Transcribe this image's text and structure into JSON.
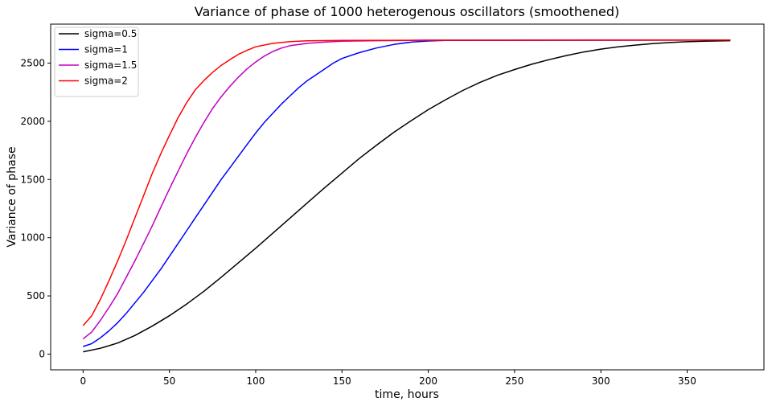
{
  "chart_data": {
    "type": "line",
    "title": "Variance of phase of 1000 heterogenous oscillators (smoothened)",
    "xlabel": "time, hours",
    "ylabel": "Variance of phase",
    "xlim": [
      -18.8,
      394.5
    ],
    "ylim": [
      -135,
      2835
    ],
    "x_ticks": [
      0,
      50,
      100,
      150,
      200,
      250,
      300,
      350
    ],
    "y_ticks": [
      0,
      500,
      1000,
      1500,
      2000,
      2500
    ],
    "grid": false,
    "legend_position": "top-left",
    "series": [
      {
        "name": "sigma=0.5",
        "color": "#000000",
        "points": [
          [
            0,
            20
          ],
          [
            10,
            50
          ],
          [
            20,
            95
          ],
          [
            30,
            160
          ],
          [
            40,
            240
          ],
          [
            50,
            330
          ],
          [
            60,
            430
          ],
          [
            70,
            540
          ],
          [
            80,
            660
          ],
          [
            90,
            785
          ],
          [
            100,
            910
          ],
          [
            110,
            1040
          ],
          [
            120,
            1170
          ],
          [
            130,
            1300
          ],
          [
            140,
            1430
          ],
          [
            150,
            1555
          ],
          [
            160,
            1680
          ],
          [
            170,
            1795
          ],
          [
            180,
            1905
          ],
          [
            190,
            2005
          ],
          [
            200,
            2100
          ],
          [
            210,
            2185
          ],
          [
            220,
            2265
          ],
          [
            230,
            2335
          ],
          [
            240,
            2395
          ],
          [
            250,
            2445
          ],
          [
            260,
            2490
          ],
          [
            270,
            2530
          ],
          [
            280,
            2565
          ],
          [
            290,
            2595
          ],
          [
            300,
            2620
          ],
          [
            310,
            2640
          ],
          [
            320,
            2655
          ],
          [
            330,
            2668
          ],
          [
            340,
            2677
          ],
          [
            350,
            2684
          ],
          [
            360,
            2688
          ],
          [
            375,
            2693
          ]
        ]
      },
      {
        "name": "sigma=1",
        "color": "#0000ff",
        "points": [
          [
            0,
            65
          ],
          [
            5,
            90
          ],
          [
            10,
            140
          ],
          [
            15,
            200
          ],
          [
            20,
            270
          ],
          [
            25,
            350
          ],
          [
            30,
            440
          ],
          [
            35,
            530
          ],
          [
            40,
            630
          ],
          [
            45,
            730
          ],
          [
            50,
            840
          ],
          [
            55,
            950
          ],
          [
            60,
            1060
          ],
          [
            65,
            1170
          ],
          [
            70,
            1280
          ],
          [
            75,
            1390
          ],
          [
            80,
            1500
          ],
          [
            85,
            1600
          ],
          [
            90,
            1700
          ],
          [
            95,
            1800
          ],
          [
            100,
            1900
          ],
          [
            105,
            1990
          ],
          [
            110,
            2070
          ],
          [
            115,
            2150
          ],
          [
            120,
            2220
          ],
          [
            125,
            2290
          ],
          [
            130,
            2350
          ],
          [
            135,
            2400
          ],
          [
            140,
            2450
          ],
          [
            145,
            2500
          ],
          [
            150,
            2540
          ],
          [
            160,
            2590
          ],
          [
            170,
            2630
          ],
          [
            180,
            2660
          ],
          [
            190,
            2680
          ],
          [
            200,
            2690
          ],
          [
            210,
            2695
          ],
          [
            375,
            2698
          ]
        ]
      },
      {
        "name": "sigma=1.5",
        "color": "#c000c0",
        "points": [
          [
            0,
            130
          ],
          [
            5,
            190
          ],
          [
            10,
            290
          ],
          [
            15,
            400
          ],
          [
            20,
            520
          ],
          [
            25,
            660
          ],
          [
            30,
            800
          ],
          [
            35,
            950
          ],
          [
            40,
            1100
          ],
          [
            45,
            1260
          ],
          [
            50,
            1420
          ],
          [
            55,
            1570
          ],
          [
            60,
            1720
          ],
          [
            65,
            1860
          ],
          [
            70,
            1990
          ],
          [
            75,
            2110
          ],
          [
            80,
            2210
          ],
          [
            85,
            2300
          ],
          [
            90,
            2380
          ],
          [
            95,
            2450
          ],
          [
            100,
            2510
          ],
          [
            105,
            2560
          ],
          [
            110,
            2600
          ],
          [
            115,
            2630
          ],
          [
            120,
            2650
          ],
          [
            130,
            2670
          ],
          [
            140,
            2680
          ],
          [
            150,
            2688
          ],
          [
            170,
            2693
          ],
          [
            200,
            2697
          ],
          [
            375,
            2698
          ]
        ]
      },
      {
        "name": "sigma=2",
        "color": "#ff0000",
        "points": [
          [
            0,
            245
          ],
          [
            5,
            330
          ],
          [
            10,
            470
          ],
          [
            15,
            630
          ],
          [
            20,
            800
          ],
          [
            25,
            980
          ],
          [
            30,
            1170
          ],
          [
            35,
            1360
          ],
          [
            40,
            1550
          ],
          [
            45,
            1720
          ],
          [
            50,
            1880
          ],
          [
            55,
            2030
          ],
          [
            60,
            2160
          ],
          [
            65,
            2270
          ],
          [
            70,
            2350
          ],
          [
            75,
            2420
          ],
          [
            80,
            2480
          ],
          [
            85,
            2530
          ],
          [
            90,
            2575
          ],
          [
            95,
            2610
          ],
          [
            100,
            2640
          ],
          [
            110,
            2670
          ],
          [
            120,
            2685
          ],
          [
            130,
            2692
          ],
          [
            150,
            2695
          ],
          [
            200,
            2697
          ],
          [
            375,
            2698
          ]
        ]
      }
    ]
  }
}
